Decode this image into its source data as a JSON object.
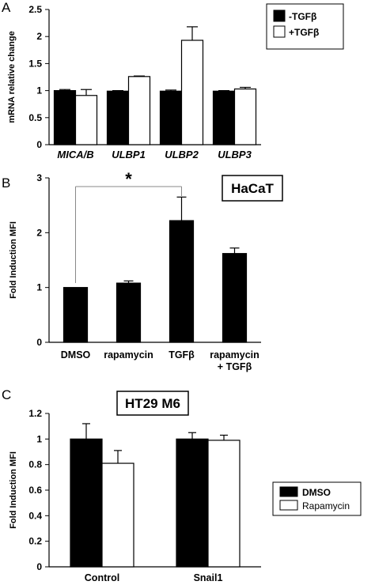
{
  "panels": [
    {
      "label": "A"
    },
    {
      "label": "B"
    },
    {
      "label": "C"
    }
  ],
  "chart_data": [
    {
      "type": "bar",
      "panel": "A",
      "ylabel": "mRNA relative change",
      "ylim": [
        0,
        2.5
      ],
      "yticks": [
        "0",
        "0.5",
        "1",
        "1.5",
        "2",
        "2.5"
      ],
      "categories": [
        "MICA/B",
        "ULBP1",
        "ULBP2",
        "ULBP3"
      ],
      "series": [
        {
          "name": "-TGFβ",
          "color": "#000000",
          "values": [
            1.0,
            0.99,
            0.99,
            0.99
          ],
          "errors": [
            0.02,
            0.01,
            0.02,
            0.01
          ]
        },
        {
          "name": "+TGFβ",
          "color": "#ffffff",
          "values": [
            0.91,
            1.26,
            1.93,
            1.03
          ],
          "errors": [
            0.11,
            0.01,
            0.25,
            0.03
          ]
        }
      ],
      "legend": "top-right"
    },
    {
      "type": "bar",
      "panel": "B",
      "ylabel": "Fold Induction MFI",
      "ylim": [
        0,
        3
      ],
      "yticks": [
        "0",
        "1",
        "2",
        "3"
      ],
      "categories": [
        "DMSO",
        "rapamycin",
        "TGFβ",
        "rapamycin\n+ TGFβ"
      ],
      "series": [
        {
          "name": "",
          "color": "#000000",
          "values": [
            1.0,
            1.08,
            2.22,
            1.62
          ],
          "errors": [
            0.0,
            0.04,
            0.43,
            0.1
          ]
        }
      ],
      "annotation": {
        "text": "*",
        "from": "DMSO",
        "to": "TGFβ"
      },
      "boxed_label": "HaCaT"
    },
    {
      "type": "bar",
      "panel": "C",
      "ylabel": "Fold Induction MFI",
      "ylim": [
        0,
        1.2
      ],
      "yticks": [
        "0",
        "0.2",
        "0.4",
        "0.6",
        "0.8",
        "1",
        "1.2"
      ],
      "categories": [
        "Control",
        "Snail1"
      ],
      "series": [
        {
          "name": "DMSO",
          "color": "#000000",
          "values": [
            1.0,
            1.0
          ],
          "errors": [
            0.12,
            0.05
          ]
        },
        {
          "name": "Rapamycin",
          "color": "#ffffff",
          "values": [
            0.81,
            0.99
          ],
          "errors": [
            0.1,
            0.04
          ]
        }
      ],
      "legend": "right",
      "boxed_label": "HT29 M6"
    }
  ]
}
